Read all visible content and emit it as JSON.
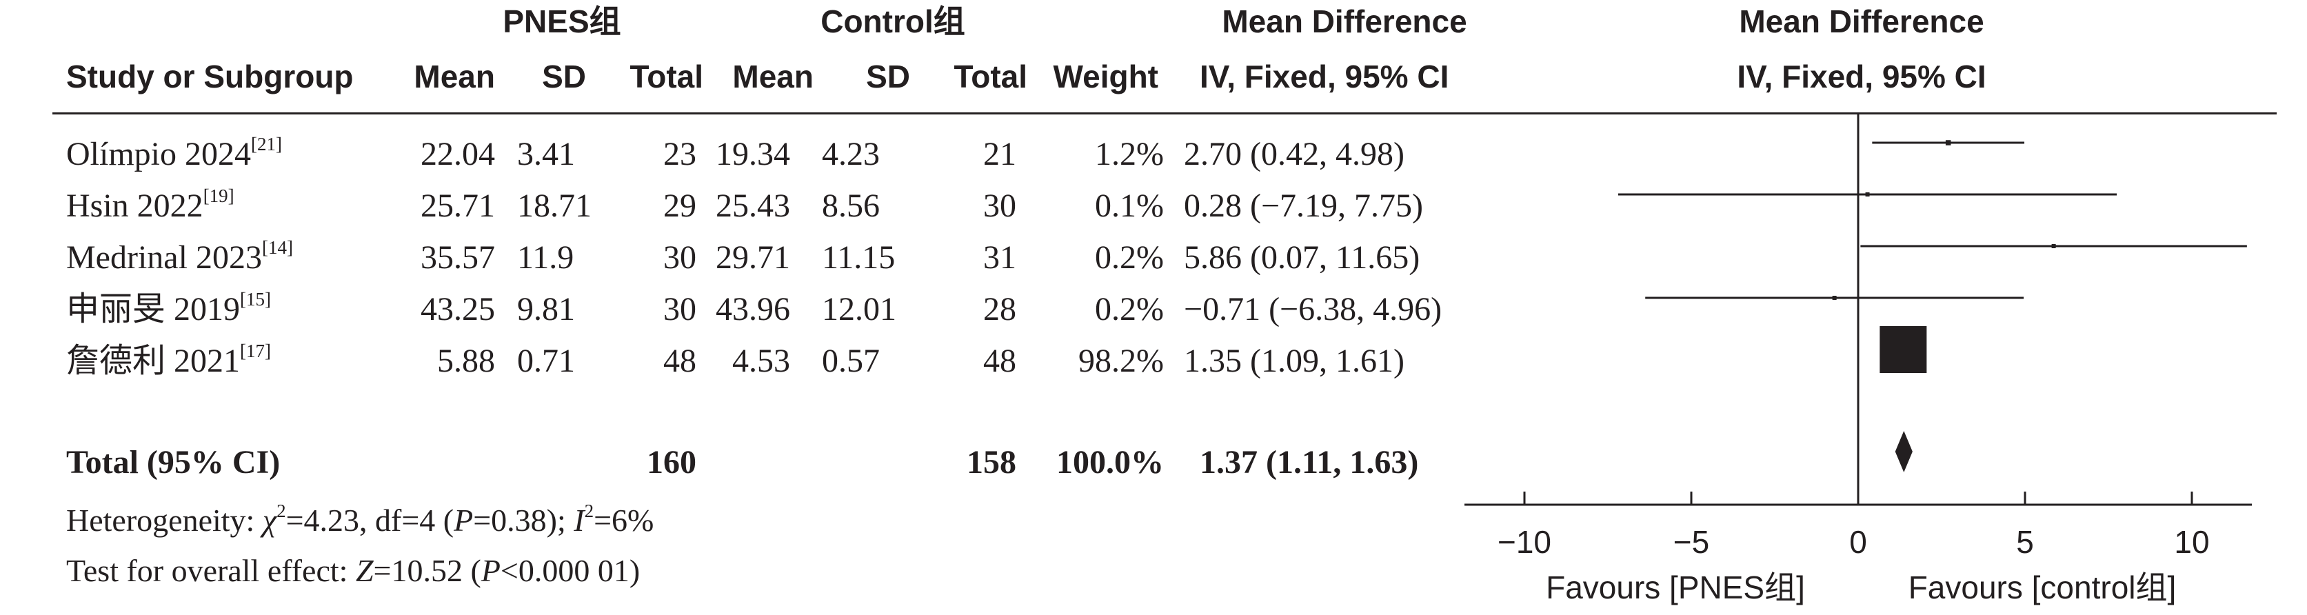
{
  "header": {
    "group1": "PNES组",
    "group2": "Control组",
    "md_title": "Mean Difference",
    "plot_title": "Mean Difference",
    "cols": {
      "study": "Study or Subgroup",
      "mean1": "Mean",
      "sd1": "SD",
      "total1": "Total",
      "mean2": "Mean",
      "sd2": "SD",
      "total2": "Total",
      "weight": "Weight",
      "ci": "IV, Fixed, 95% CI",
      "plot_ci": "IV, Fixed, 95% CI"
    }
  },
  "studies": [
    {
      "name": "Olímpio 2024",
      "ref": "[21]",
      "mean1": "22.04",
      "sd1": "3.41",
      "total1": "23",
      "mean2": "19.34",
      "sd2": "4.23",
      "total2": "21",
      "weight": "1.2%",
      "ci": "2.70 (0.42, 4.98)"
    },
    {
      "name": "Hsin 2022",
      "ref": "[19]",
      "mean1": "25.71",
      "sd1": "18.71",
      "total1": "29",
      "mean2": "25.43",
      "sd2": "8.56",
      "total2": "30",
      "weight": "0.1%",
      "ci": "0.28 (−7.19, 7.75)"
    },
    {
      "name": "Medrinal 2023",
      "ref": "[14]",
      "mean1": "35.57",
      "sd1": "11.9",
      "total1": "30",
      "mean2": "29.71",
      "sd2": "11.15",
      "total2": "31",
      "weight": "0.2%",
      "ci": "5.86 (0.07, 11.65)"
    },
    {
      "name": "申丽旻 2019",
      "ref": "[15]",
      "mean1": "43.25",
      "sd1": "9.81",
      "total1": "30",
      "mean2": "43.96",
      "sd2": "12.01",
      "total2": "28",
      "weight": "0.2%",
      "ci": "−0.71 (−6.38, 4.96)"
    },
    {
      "name": "詹德利 2021",
      "ref": "[17]",
      "mean1": "5.88",
      "sd1": "0.71",
      "total1": "48",
      "mean2": "4.53",
      "sd2": "0.57",
      "total2": "48",
      "weight": "98.2%",
      "ci": "1.35 (1.09, 1.61)"
    }
  ],
  "total": {
    "label": "Total (95% CI)",
    "total1": "160",
    "total2": "158",
    "weight": "100.0%",
    "ci": "1.37 (1.11, 1.63)"
  },
  "heterogeneity": {
    "prefix": "Heterogeneity: ",
    "chi_sym": "χ",
    "chi_sup": "2",
    "chi_rest": "=4.23, df=4 (",
    "p_sym": "P",
    "p_rest": "=0.38); ",
    "i_sym": "I",
    "i_sup": "2",
    "i_rest": "=6%"
  },
  "overall": {
    "prefix": "Test for overall effect: ",
    "z_sym": "Z",
    "z_rest": "=10.52 (",
    "p_sym": "P",
    "p_rest": "<0.000 01)"
  },
  "axis": {
    "ticks": [
      "−10",
      "−5",
      "0",
      "5",
      "10"
    ],
    "favours_left": "Favours [PNES组]",
    "favours_right": "Favours [control组]"
  },
  "chart_data": {
    "type": "forest",
    "xlim": [
      -12,
      12
    ],
    "tick_values": [
      -10,
      -5,
      0,
      5,
      10
    ],
    "estimates": [
      {
        "study": "Olímpio 2024",
        "md": 2.7,
        "lo": 0.42,
        "hi": 4.98,
        "weight": 1.2
      },
      {
        "study": "Hsin 2022",
        "md": 0.28,
        "lo": -7.19,
        "hi": 7.75,
        "weight": 0.1
      },
      {
        "study": "Medrinal 2023",
        "md": 5.86,
        "lo": 0.07,
        "hi": 11.65,
        "weight": 0.2
      },
      {
        "study": "申丽旻 2019",
        "md": -0.71,
        "lo": -6.38,
        "hi": 4.96,
        "weight": 0.2
      },
      {
        "study": "詹德利 2021",
        "md": 1.35,
        "lo": 1.09,
        "hi": 1.61,
        "weight": 98.2
      }
    ],
    "pooled": {
      "md": 1.37,
      "lo": 1.11,
      "hi": 1.63
    }
  }
}
